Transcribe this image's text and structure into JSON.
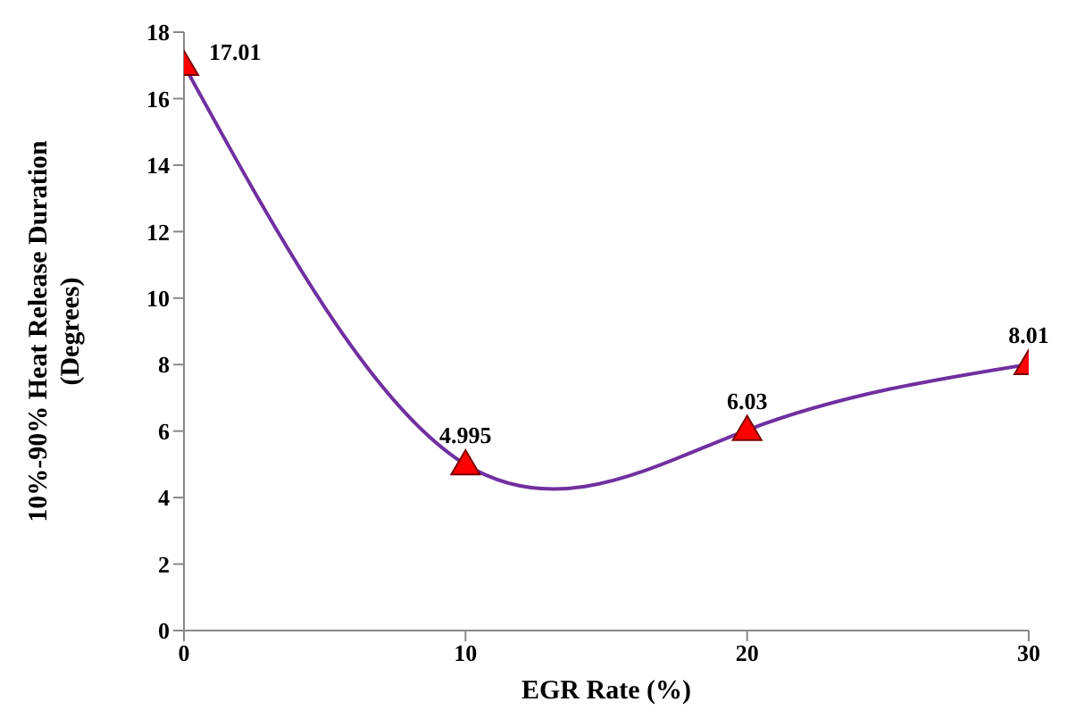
{
  "chart_data": {
    "type": "line",
    "xlabel": "EGR Rate (%)",
    "ylabel": "10%-90% Heat Release Duration (Degrees)",
    "x": [
      0,
      10,
      20,
      30
    ],
    "series": [
      {
        "color": "#7030a0",
        "colors": [
          "#ff0000",
          "#ff0000",
          "#ff0000",
          "#ff0000"
        ],
        "values": [
          17.01,
          4.995,
          6.03,
          8.01
        ]
      }
    ],
    "xlim": [
      0,
      30
    ],
    "xticks": [
      0,
      10,
      20,
      30
    ],
    "ylim": [
      0,
      18
    ],
    "yticks": [
      0,
      2,
      4,
      6,
      8,
      10,
      12,
      14,
      16,
      18
    ],
    "marker": "triangle",
    "data_labels": true
  }
}
